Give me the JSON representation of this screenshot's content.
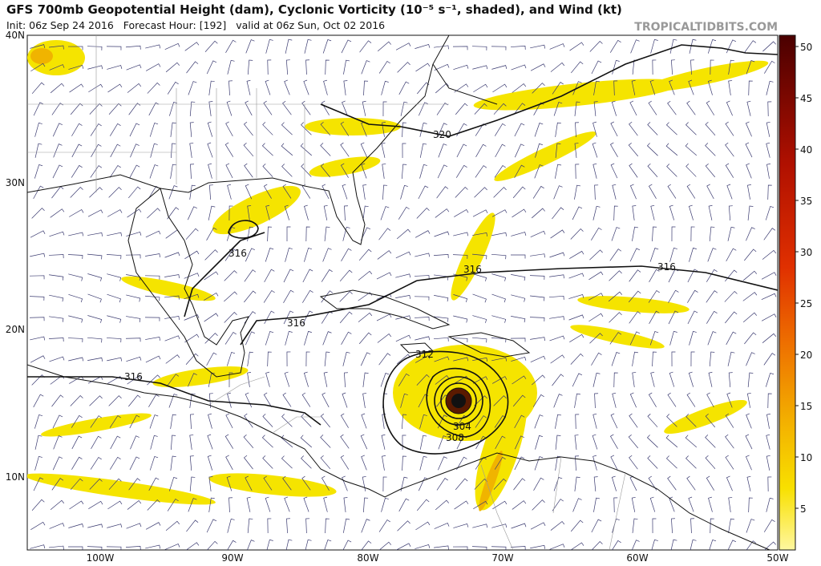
{
  "header": {
    "title": "GFS 700mb Geopotential Height (dam), Cyclonic Vorticity (10⁻⁵ s⁻¹, shaded), and Wind (kt)",
    "subtitle": "Init: 06z Sep 24 2016   Forecast Hour: [192]   valid at 06z Sun, Oct 02 2016",
    "source": "TROPICALTIDBITS.COM"
  },
  "map": {
    "lat_labels": [
      "40N",
      "30N",
      "20N",
      "10N"
    ],
    "lon_labels": [
      "100W",
      "90W",
      "80W",
      "70W",
      "60W",
      "50W"
    ],
    "contour_labels": [
      "320",
      "316",
      "316",
      "316",
      "316",
      "316",
      "312",
      "308",
      "304"
    ]
  },
  "colorbar": {
    "ticks": [
      5,
      10,
      15,
      20,
      25,
      30,
      35,
      40,
      45,
      50
    ]
  }
}
